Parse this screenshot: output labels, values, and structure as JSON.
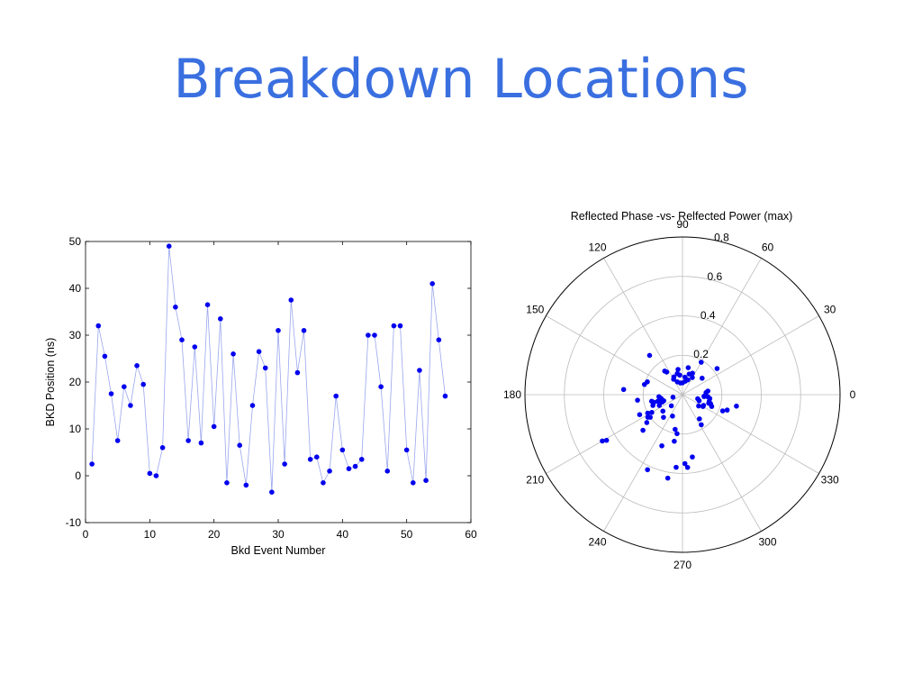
{
  "slide": {
    "title": "Breakdown Locations"
  },
  "chart_data": [
    {
      "type": "line",
      "title": "",
      "xlabel": "Bkd Event Number",
      "ylabel": "BKD Position (ns)",
      "xlim": [
        0,
        60
      ],
      "ylim": [
        -10,
        50
      ],
      "xticks": [
        0,
        10,
        20,
        30,
        40,
        50,
        60
      ],
      "yticks": [
        -10,
        0,
        10,
        20,
        30,
        40,
        50
      ],
      "grid": false,
      "marker": "dot",
      "series_color": "#0000ee",
      "line_color": "#9aa6ee",
      "series": [
        {
          "x": [
            1,
            2,
            3,
            4,
            5,
            6,
            7,
            8,
            9,
            10,
            11,
            12,
            13,
            14,
            15,
            16,
            17,
            18,
            19,
            20,
            21,
            22,
            23,
            24,
            25,
            26,
            27,
            28,
            29,
            30,
            31,
            32,
            33,
            34,
            35,
            36,
            37,
            38,
            39,
            40,
            41,
            42,
            43,
            44,
            45,
            46,
            47,
            48,
            49,
            50,
            51,
            52,
            53,
            54,
            55,
            56
          ],
          "values": [
            2.5,
            32,
            25.5,
            17.5,
            7.5,
            19,
            15,
            23.5,
            19.5,
            0.5,
            0,
            6,
            49,
            36,
            29,
            7.5,
            27.5,
            7,
            36.5,
            10.5,
            33.5,
            -1.5,
            26,
            6.5,
            -2,
            15,
            26.5,
            23,
            -3.5,
            31,
            2.5,
            37.5,
            22,
            31,
            3.5,
            4,
            -1.5,
            1,
            17,
            5.5,
            1.5,
            2,
            3.5,
            30,
            30,
            19,
            1,
            32,
            32,
            5.5,
            -1.5,
            22.5,
            -1,
            41,
            29,
            17
          ]
        }
      ]
    },
    {
      "type": "scatter",
      "subtype": "polar",
      "title": "Reflected Phase -vs- Relfected Power (max)",
      "r_max": 0.8,
      "r_ticks": [
        0.2,
        0.4,
        0.6,
        0.8
      ],
      "theta_labels": [
        "0",
        "30",
        "60",
        "90",
        "120",
        "150",
        "180",
        "210",
        "240",
        "270",
        "300",
        "330"
      ],
      "series_color": "#0000ee",
      "points_r_theta_deg": [
        [
          0.19,
          60
        ],
        [
          0.22,
          37
        ],
        [
          0.13,
          40
        ],
        [
          0.1,
          60
        ],
        [
          0.12,
          65
        ],
        [
          0.08,
          70
        ],
        [
          0.11,
          72
        ],
        [
          0.07,
          78
        ],
        [
          0.14,
          78
        ],
        [
          0.09,
          82
        ],
        [
          0.06,
          90
        ],
        [
          0.1,
          98
        ],
        [
          0.13,
          100
        ],
        [
          0.11,
          104
        ],
        [
          0.07,
          112
        ],
        [
          0.1,
          116
        ],
        [
          0.09,
          120
        ],
        [
          0.14,
          125
        ],
        [
          0.15,
          127
        ],
        [
          0.26,
          130
        ],
        [
          0.06,
          100
        ],
        [
          0.19,
          160
        ],
        [
          0.2,
          165
        ],
        [
          0.3,
          175
        ],
        [
          0.23,
          187
        ],
        [
          0.1,
          198
        ],
        [
          0.12,
          185
        ],
        [
          0.11,
          190
        ],
        [
          0.13,
          195
        ],
        [
          0.15,
          195
        ],
        [
          0.13,
          205
        ],
        [
          0.16,
          200
        ],
        [
          0.18,
          210
        ],
        [
          0.2,
          208
        ],
        [
          0.2,
          215
        ],
        [
          0.21,
          213
        ],
        [
          0.23,
          218
        ],
        [
          0.24,
          205
        ],
        [
          0.27,
          222
        ],
        [
          0.15,
          230
        ],
        [
          0.08,
          225
        ],
        [
          0.11,
          200
        ],
        [
          0.16,
          192
        ],
        [
          0.05,
          195
        ],
        [
          0.45,
          211
        ],
        [
          0.47,
          210
        ],
        [
          0.42,
          245
        ],
        [
          0.43,
          260
        ],
        [
          0.28,
          248
        ],
        [
          0.37,
          265
        ],
        [
          0.37,
          274
        ],
        [
          0.35,
          272
        ],
        [
          0.32,
          279
        ],
        [
          0.24,
          260
        ],
        [
          0.2,
          262
        ],
        [
          0.18,
          258
        ],
        [
          0.12,
          245
        ],
        [
          0.13,
          220
        ],
        [
          0.15,
          305
        ],
        [
          0.18,
          302
        ],
        [
          0.1,
          325
        ],
        [
          0.12,
          330
        ],
        [
          0.16,
          338
        ],
        [
          0.22,
          338
        ],
        [
          0.28,
          348
        ],
        [
          0.24,
          341
        ],
        [
          0.14,
          346
        ],
        [
          0.15,
          342
        ],
        [
          0.13,
          355
        ],
        [
          0.11,
          356
        ],
        [
          0.14,
          352
        ],
        [
          0.12,
          5
        ],
        [
          0.13,
          8
        ],
        [
          0.14,
          342
        ],
        [
          0.12,
          333
        ],
        [
          0.08,
          345
        ],
        [
          0.09,
          340
        ],
        [
          0.11,
          355
        ]
      ]
    }
  ]
}
